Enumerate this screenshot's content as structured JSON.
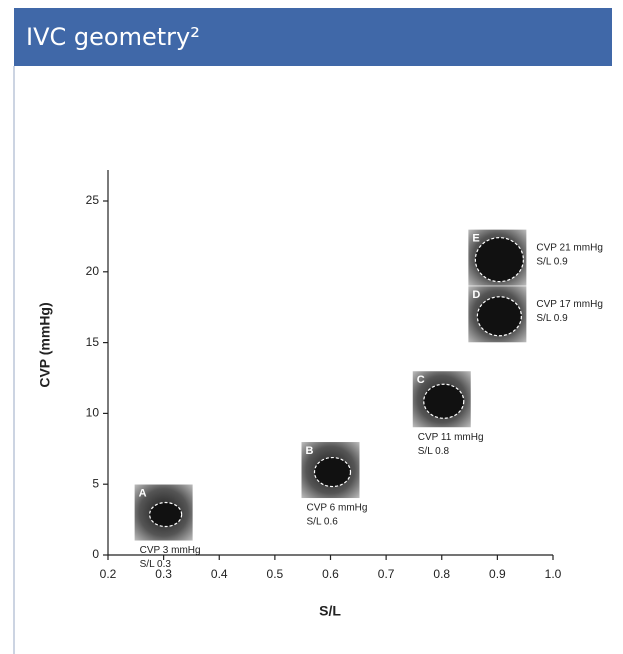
{
  "chart_data": {
    "type": "scatter",
    "title": "IVC geometry²",
    "x_label": "S/L",
    "y_label": "CVP (mmHg)",
    "point_labels": [
      "A",
      "B",
      "C",
      "D",
      "E"
    ],
    "x": [
      0.3,
      0.6,
      0.8,
      0.9,
      0.9
    ],
    "values": [
      3,
      6,
      11,
      17,
      21
    ],
    "value_labels": [
      "CVP 3 mmHg",
      "CVP 6 mmHg",
      "CVP 11 mmHg",
      "CVP 17 mmHg",
      "CVP 21 mmHg"
    ],
    "x_value_labels": [
      "S/L 0.3",
      "S/L 0.6",
      "S/L 0.8",
      "S/L 0.9",
      "S/L 0.9"
    ],
    "xlim": [
      0.2,
      1.0
    ],
    "ylim": [
      0,
      27
    ],
    "xticks": [
      0.2,
      0.3,
      0.4,
      0.5,
      0.6,
      0.7,
      0.8,
      0.9,
      {
        "value": 1,
        "label": "1.0"
      }
    ],
    "yticks": [
      0,
      5,
      10,
      15,
      20,
      25
    ],
    "header_color": "#4068a8"
  }
}
